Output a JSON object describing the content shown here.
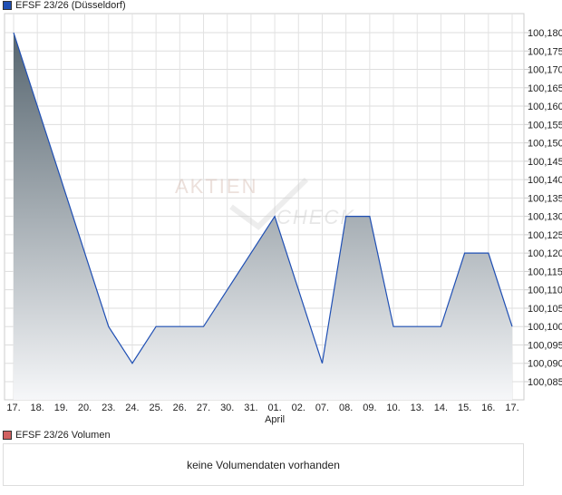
{
  "legend": {
    "price_label": "EFSF 23/26 (Düsseldorf)",
    "price_color": "#1f4fb4",
    "volume_label": "EFSF 23/26 Volumen",
    "volume_color": "#d06060"
  },
  "watermark": {
    "line1": "AKTIEN",
    "line2": "CHECK"
  },
  "volume": {
    "empty_message": "keine Volumendaten vorhanden"
  },
  "chart_data": {
    "type": "area",
    "title": "EFSF 23/26 (Düsseldorf)",
    "categories": [
      "17.",
      "18.",
      "19.",
      "20.",
      "23.",
      "24.",
      "25.",
      "26.",
      "27.",
      "30.",
      "31.",
      "01.",
      "02.",
      "07.",
      "08.",
      "09.",
      "10.",
      "13.",
      "14.",
      "15.",
      "16.",
      "17."
    ],
    "month_label": {
      "text": "April",
      "under": "01."
    },
    "values": [
      100.18,
      100.16,
      100.14,
      100.12,
      100.1,
      100.09,
      100.1,
      100.1,
      100.1,
      100.11,
      100.12,
      100.13,
      100.11,
      100.09,
      100.13,
      100.13,
      100.1,
      100.1,
      100.1,
      100.12,
      100.12,
      100.1
    ],
    "ylim": [
      100.08,
      100.185
    ],
    "yticks": [
      "100,085",
      "100,090",
      "100,095",
      "100,100",
      "100,105",
      "100,110",
      "100,115",
      "100,120",
      "100,125",
      "100,130",
      "100,135",
      "100,140",
      "100,145",
      "100,150",
      "100,155",
      "100,160",
      "100,165",
      "100,170",
      "100,175",
      "100,180"
    ],
    "ytick_values": [
      100.085,
      100.09,
      100.095,
      100.1,
      100.105,
      100.11,
      100.115,
      100.12,
      100.125,
      100.13,
      100.135,
      100.14,
      100.145,
      100.15,
      100.155,
      100.16,
      100.165,
      100.17,
      100.175,
      100.18
    ],
    "grid": true,
    "line_color": "#1f4fb4"
  }
}
